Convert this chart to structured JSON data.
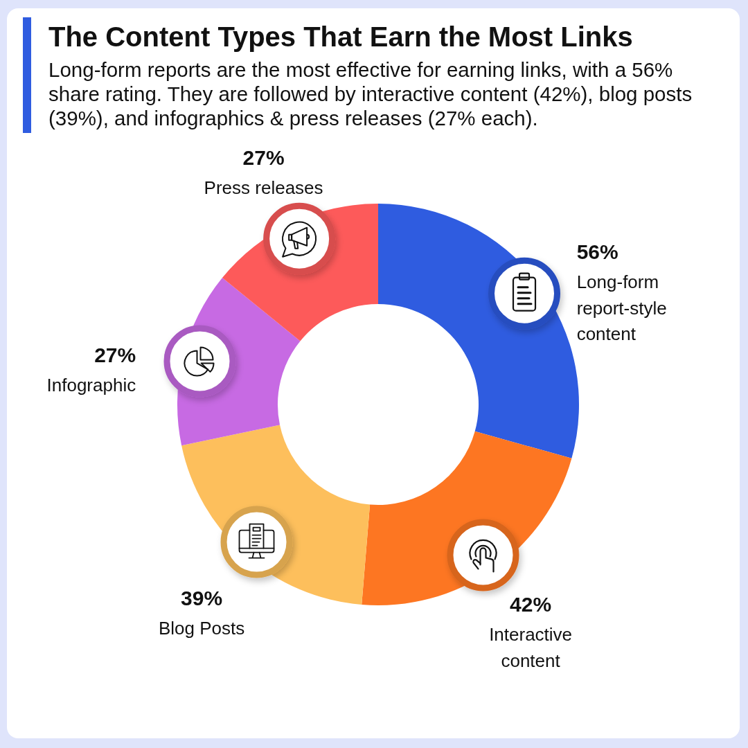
{
  "chart_data": {
    "type": "donut",
    "title": "The Content Types That Earn the Most Links",
    "subtitle": "Long-form reports are the most effective for earning links, with a 56% share rating. They are followed by interactive content (42%), blog posts (39%), and infographics & press releases (27% each).",
    "categories": [
      "Long-form report-style content",
      "Interactive content",
      "Blog Posts",
      "Infographic",
      "Press releases"
    ],
    "values": [
      56,
      42,
      39,
      27,
      27
    ],
    "colors": [
      "#2f5ce0",
      "#fd7622",
      "#fdbf5c",
      "#c76ae3",
      "#fd5a5a"
    ],
    "value_labels": [
      "56%",
      "42%",
      "39%",
      "27%",
      "27%"
    ]
  }
}
